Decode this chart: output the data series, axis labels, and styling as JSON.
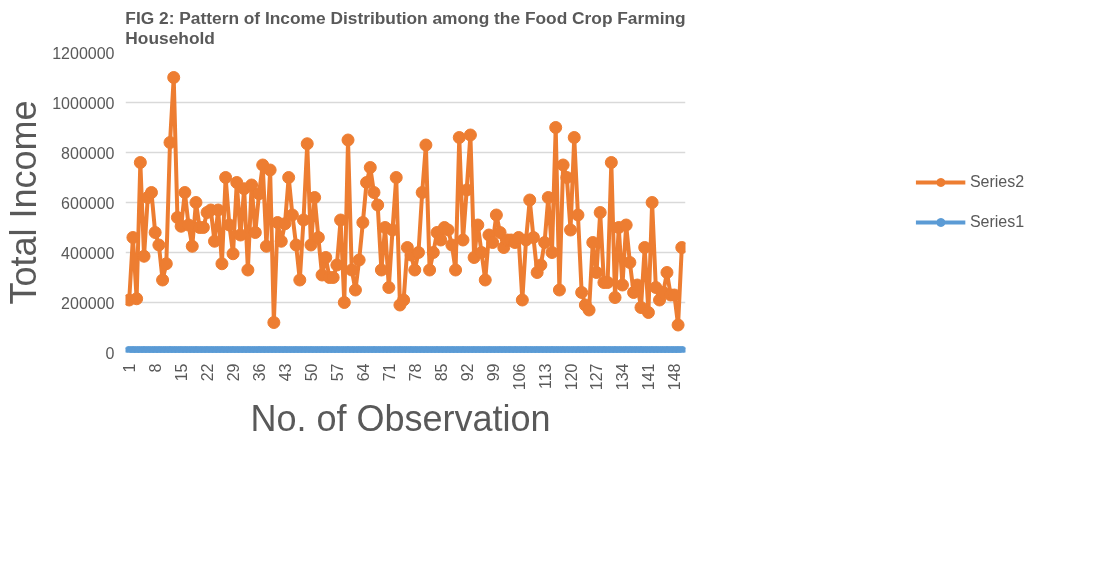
{
  "chart_data": {
    "type": "line",
    "title": "FIG 2: Pattern of Income Distribution among the Food Crop Farming Household",
    "xlabel": "No. of  Observation",
    "ylabel": "Total Income",
    "x": [
      1,
      2,
      3,
      4,
      5,
      6,
      7,
      8,
      9,
      10,
      11,
      12,
      13,
      14,
      15,
      16,
      17,
      18,
      19,
      20,
      21,
      22,
      23,
      24,
      25,
      26,
      27,
      28,
      29,
      30,
      31,
      32,
      33,
      34,
      35,
      36,
      37,
      38,
      39,
      40,
      41,
      42,
      43,
      44,
      45,
      46,
      47,
      48,
      49,
      50,
      51,
      52,
      53,
      54,
      55,
      56,
      57,
      58,
      59,
      60,
      61,
      62,
      63,
      64,
      65,
      66,
      67,
      68,
      69,
      70,
      71,
      72,
      73,
      74,
      75,
      76,
      77,
      78,
      79,
      80,
      81,
      82,
      83,
      84,
      85,
      86,
      87,
      88,
      89,
      90,
      91,
      92,
      93,
      94,
      95,
      96,
      97,
      98,
      99,
      100,
      101,
      102,
      103,
      104,
      105,
      106,
      107,
      108,
      109,
      110,
      111,
      112,
      113,
      114,
      115,
      116,
      117,
      118,
      119,
      120,
      121,
      122,
      123,
      124,
      125,
      126,
      127,
      128,
      129,
      130,
      131,
      132,
      133,
      134,
      135,
      136,
      137,
      138,
      139,
      140,
      141,
      142,
      143,
      144,
      145,
      146,
      147,
      148,
      149,
      150
    ],
    "series": [
      {
        "name": "Series2",
        "color": "#ed7d31",
        "values": [
          210000,
          460000,
          215000,
          760000,
          385000,
          620000,
          640000,
          480000,
          430000,
          290000,
          355000,
          840000,
          1100000,
          540000,
          505000,
          640000,
          510000,
          425000,
          600000,
          500000,
          500000,
          560000,
          570000,
          445000,
          570000,
          355000,
          700000,
          510000,
          395000,
          680000,
          470000,
          655000,
          330000,
          670000,
          480000,
          635000,
          750000,
          425000,
          730000,
          120000,
          520000,
          445000,
          515000,
          700000,
          550000,
          430000,
          290000,
          530000,
          835000,
          430000,
          620000,
          460000,
          310000,
          380000,
          300000,
          300000,
          350000,
          530000,
          200000,
          850000,
          330000,
          250000,
          370000,
          520000,
          680000,
          740000,
          640000,
          590000,
          330000,
          500000,
          260000,
          490000,
          700000,
          190000,
          210000,
          420000,
          390000,
          330000,
          400000,
          640000,
          830000,
          330000,
          400000,
          480000,
          450000,
          500000,
          490000,
          430000,
          330000,
          860000,
          450000,
          650000,
          870000,
          380000,
          510000,
          400000,
          290000,
          470000,
          440000,
          550000,
          480000,
          420000,
          450000,
          450000,
          440000,
          460000,
          210000,
          450000,
          610000,
          460000,
          320000,
          350000,
          440000,
          620000,
          400000,
          900000,
          250000,
          750000,
          700000,
          490000,
          860000,
          550000,
          240000,
          190000,
          170000,
          440000,
          320000,
          560000,
          280000,
          280000,
          760000,
          220000,
          500000,
          270000,
          510000,
          360000,
          240000,
          270000,
          180000,
          420000,
          160000,
          600000,
          260000,
          210000,
          240000,
          320000,
          230000,
          230000,
          110000,
          420000
        ]
      },
      {
        "name": "Series1",
        "color": "#5b9bd5",
        "values": [
          0,
          0,
          0,
          0,
          0,
          0,
          0,
          0,
          0,
          0,
          0,
          0,
          0,
          0,
          0,
          0,
          0,
          0,
          0,
          0,
          0,
          0,
          0,
          0,
          0,
          0,
          0,
          0,
          0,
          0,
          0,
          0,
          0,
          0,
          0,
          0,
          0,
          0,
          0,
          0,
          0,
          0,
          0,
          0,
          0,
          0,
          0,
          0,
          0,
          0,
          0,
          0,
          0,
          0,
          0,
          0,
          0,
          0,
          0,
          0,
          0,
          0,
          0,
          0,
          0,
          0,
          0,
          0,
          0,
          0,
          0,
          0,
          0,
          0,
          0,
          0,
          0,
          0,
          0,
          0,
          0,
          0,
          0,
          0,
          0,
          0,
          0,
          0,
          0,
          0,
          0,
          0,
          0,
          0,
          0,
          0,
          0,
          0,
          0,
          0,
          0,
          0,
          0,
          0,
          0,
          0,
          0,
          0,
          0,
          0,
          0,
          0,
          0,
          0,
          0,
          0,
          0,
          0,
          0,
          0,
          0,
          0,
          0,
          0,
          0,
          0,
          0,
          0,
          0,
          0,
          0,
          0,
          0,
          0,
          0,
          0,
          0,
          0,
          0,
          0,
          0,
          0,
          0,
          0,
          0,
          0,
          0,
          0,
          0,
          0
        ]
      }
    ],
    "xlim": [
      0,
      151
    ],
    "xticks": [
      1,
      8,
      15,
      22,
      29,
      36,
      43,
      50,
      57,
      64,
      71,
      78,
      85,
      92,
      99,
      106,
      113,
      120,
      127,
      134,
      141,
      148
    ],
    "ylim": [
      0,
      1200000
    ],
    "yticks": [
      0,
      200000,
      400000,
      600000,
      800000,
      1000000,
      1200000
    ],
    "grid": "y",
    "legend": "right",
    "marker": "circle",
    "line_style": "solid"
  }
}
